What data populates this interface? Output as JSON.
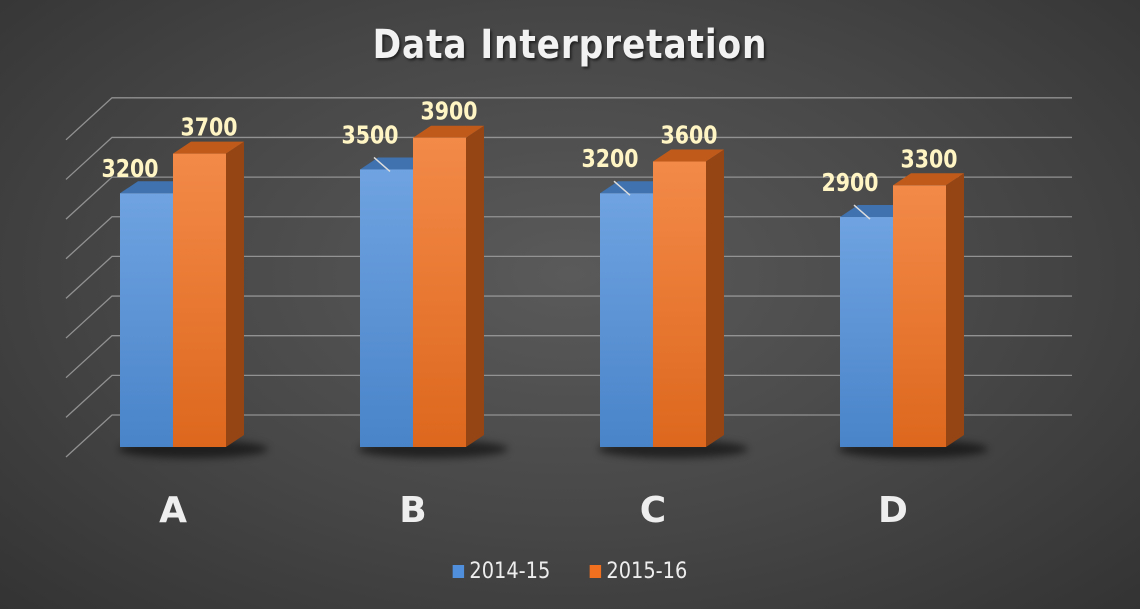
{
  "chart_data": {
    "type": "bar",
    "title": "Data Interpretation",
    "categories": [
      "A",
      "B",
      "C",
      "D"
    ],
    "series": [
      {
        "name": "2014-15",
        "values": [
          3200,
          3500,
          3200,
          2900
        ]
      },
      {
        "name": "2015-16",
        "values": [
          3700,
          3900,
          3600,
          3300
        ]
      }
    ],
    "ylim": [
      0,
      4000
    ],
    "data_labels": true,
    "grid": true,
    "legend": "bottom",
    "three_d": true
  },
  "colors": {
    "series_1": "#4f8fdb",
    "series_2": "#f07020",
    "label_text": "#fff5c4",
    "axis_text": "#eeeeee",
    "grid": "#9a9a9a"
  }
}
